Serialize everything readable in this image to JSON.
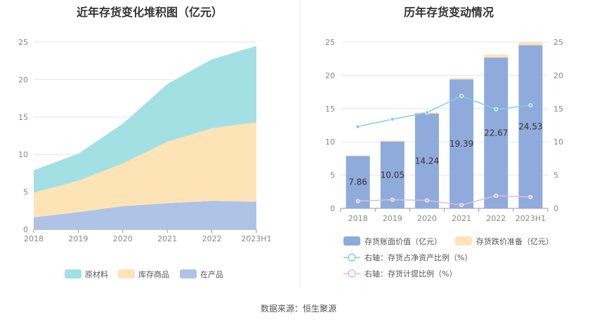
{
  "left_title": "近年存货变化堆积图（亿元）",
  "right_title": "历年存货变动情况",
  "source": "数据来源：恒生聚源",
  "colors": {
    "raw_material": "#a3e0e3",
    "finished_goods": "#fde3b6",
    "wip": "#aec3e6",
    "book_value": "#8eabdb",
    "impairment": "#fde3b6",
    "ratio_net_assets": "#7fd3d8",
    "provision_ratio": "#e5b8de"
  },
  "chart_data": [
    {
      "type": "area",
      "stacked": true,
      "categories": [
        "2018",
        "2019",
        "2020",
        "2021",
        "2022",
        "2023H1"
      ],
      "ylim": [
        0,
        25
      ],
      "yticks": [
        0,
        5,
        10,
        15,
        20,
        25
      ],
      "grid": true,
      "legend_position": "bottom",
      "series": [
        {
          "name": "在产品",
          "values": [
            1.6,
            2.3,
            3.1,
            3.5,
            3.8,
            3.7
          ]
        },
        {
          "name": "库存商品",
          "values": [
            3.3,
            4.2,
            5.7,
            8.2,
            9.7,
            10.6
          ]
        },
        {
          "name": "原材料",
          "values": [
            3.0,
            3.6,
            5.3,
            7.7,
            9.2,
            10.2
          ]
        }
      ]
    },
    {
      "type": "bar",
      "stacked": true,
      "categories": [
        "2018",
        "2019",
        "2020",
        "2021",
        "2022",
        "2023H1"
      ],
      "ylim": [
        0,
        25
      ],
      "yticks": [
        0,
        5,
        10,
        15,
        20,
        25
      ],
      "y2lim": [
        0,
        25
      ],
      "y2ticks": [
        0,
        5,
        10,
        15,
        20,
        25
      ],
      "grid": true,
      "legend_position": "bottom",
      "series": [
        {
          "name": "存货账面价值（亿元）",
          "kind": "bar",
          "values": [
            7.86,
            10.05,
            14.24,
            19.39,
            22.67,
            24.53
          ],
          "labels": [
            "7.86",
            "10.05",
            "14.24",
            "19.39",
            "22.67",
            "24.53"
          ]
        },
        {
          "name": "存货跌价准备（亿元）",
          "kind": "bar",
          "values": [
            0.1,
            0.15,
            0.2,
            0.2,
            0.45,
            0.45
          ]
        },
        {
          "name": "右轴：存货占净资产比例（%）",
          "kind": "line",
          "axis": "right",
          "values": [
            12.3,
            13.4,
            14.4,
            16.9,
            14.9,
            15.5
          ]
        },
        {
          "name": "右轴：存货计提比例（%）",
          "kind": "line",
          "axis": "right",
          "values": [
            1.1,
            1.3,
            1.2,
            0.5,
            1.9,
            1.7
          ]
        }
      ]
    }
  ]
}
